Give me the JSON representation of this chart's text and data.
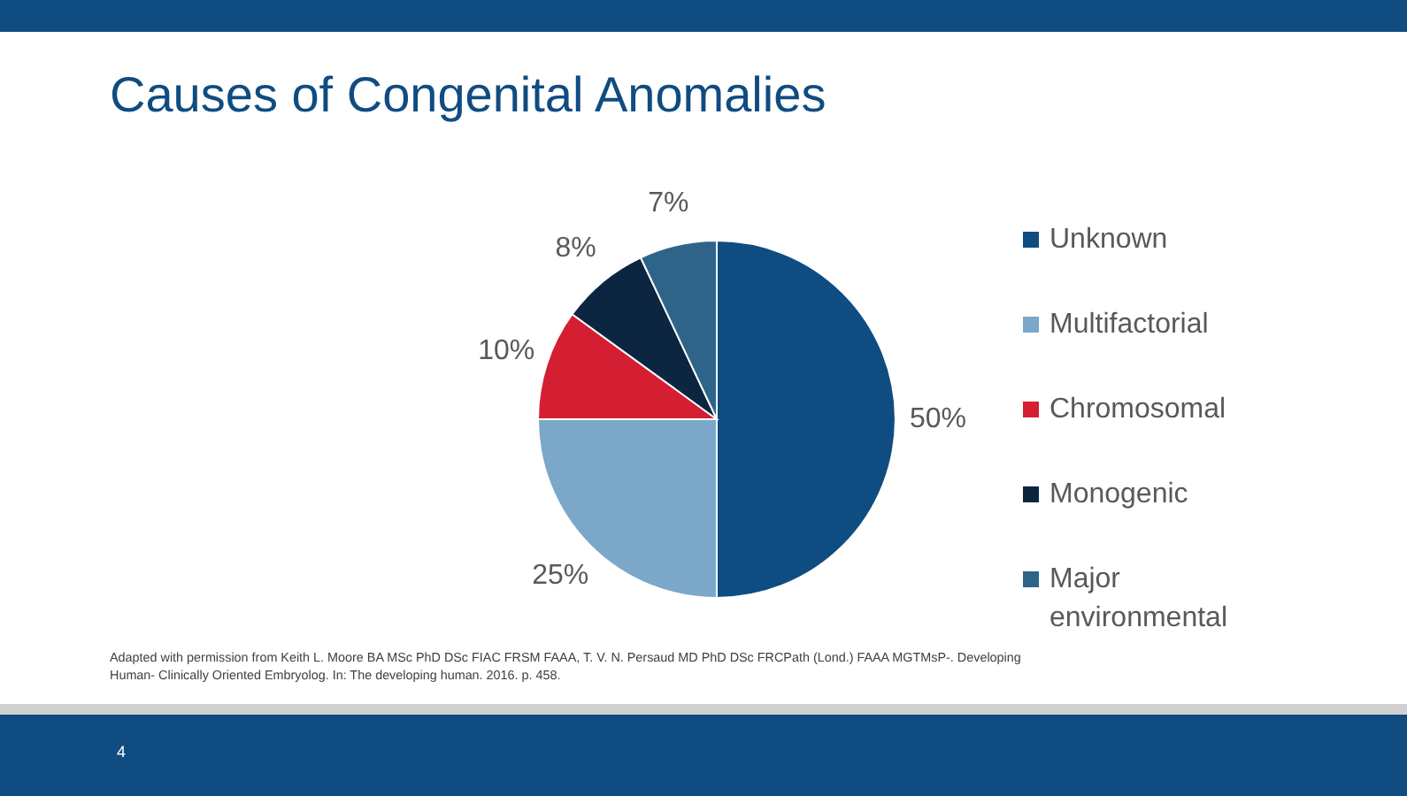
{
  "chart_data": {
    "type": "pie",
    "title": "Causes of Congenital Anomalies",
    "categories": [
      "Unknown",
      "Multifactorial",
      "Chromosomal",
      "Monogenic",
      "Major environmental"
    ],
    "values": [
      50,
      25,
      10,
      8,
      7
    ],
    "value_labels": [
      "50%",
      "25%",
      "10%",
      "8%",
      "7%"
    ],
    "colors": [
      "#0f4c81",
      "#7ba7c9",
      "#d41f33",
      "#0c2540",
      "#2e6488"
    ],
    "legend": "right",
    "annotations": [
      "Adapted with permission from Keith L. Moore BA MSc PhD DSc FIAC FRSM FAAA, T. V. N. Persaud MD PhD DSc FRCPath (Lond.) FAAA MGTMsP-. Developing Human- Clinically Oriented Embryolog. In: The developing human. 2016. p. 458.",
      "4"
    ]
  }
}
